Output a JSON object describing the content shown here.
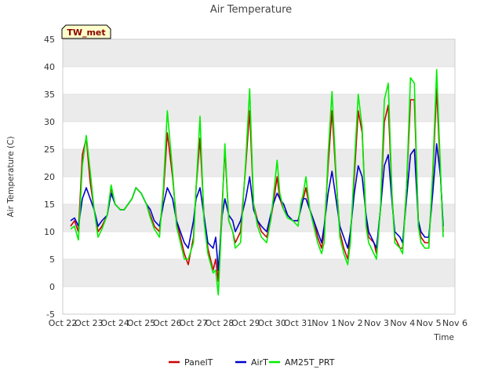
{
  "chart_data": {
    "type": "line",
    "title": "Air Temperature",
    "xlabel": "Time",
    "ylabel": "Air Temperature (C)",
    "station_label": "TW_met",
    "ylim": [
      -5,
      45
    ],
    "yticks": [
      -5,
      0,
      5,
      10,
      15,
      20,
      25,
      30,
      35,
      40,
      45
    ],
    "xlim": [
      0,
      15
    ],
    "xticks": [
      0,
      1,
      2,
      3,
      4,
      5,
      6,
      7,
      8,
      9,
      10,
      11,
      12,
      13,
      14,
      15
    ],
    "xtick_labels": [
      "Oct 22",
      "Oct 23",
      "Oct 24",
      "Oct 25",
      "Oct 26",
      "Oct 27",
      "Oct 28",
      "Oct 29",
      "Oct 30",
      "Oct 31",
      "Nov 1",
      "Nov 2",
      "Nov 3",
      "Nov 4",
      "Nov 5",
      "Nov 6"
    ],
    "grid": true,
    "legend_position": "bottom",
    "colors": {
      "background_band": "#ebebeb",
      "plot_bg": "#ffffff",
      "label_box_bg": "#ffffcc"
    },
    "series": [
      {
        "name": "PanelT",
        "color": "#cc0000",
        "x": [
          0.3,
          0.45,
          0.6,
          0.75,
          0.9,
          1.05,
          1.2,
          1.35,
          1.5,
          1.7,
          1.85,
          2.0,
          2.2,
          2.35,
          2.5,
          2.65,
          2.8,
          3.0,
          3.2,
          3.35,
          3.5,
          3.7,
          3.85,
          4.0,
          4.2,
          4.35,
          4.5,
          4.65,
          4.8,
          5.0,
          5.1,
          5.25,
          5.4,
          5.55,
          5.75,
          5.85,
          5.95,
          6.1,
          6.2,
          6.35,
          6.5,
          6.6,
          6.8,
          7.0,
          7.15,
          7.3,
          7.45,
          7.6,
          7.8,
          7.95,
          8.05,
          8.2,
          8.3,
          8.45,
          8.6,
          8.8,
          9.0,
          9.1,
          9.2,
          9.3,
          9.45,
          9.6,
          9.75,
          9.9,
          10.0,
          10.15,
          10.3,
          10.45,
          10.6,
          10.75,
          10.9,
          11.0,
          11.15,
          11.3,
          11.45,
          11.6,
          11.7,
          11.9,
          12.0,
          12.15,
          12.3,
          12.45,
          12.6,
          12.7,
          12.9,
          13.0,
          13.15,
          13.3,
          13.45,
          13.6,
          13.7,
          13.85,
          14.0,
          14.15,
          14.3,
          14.45,
          14.55
        ],
        "y": [
          11,
          12,
          10,
          24,
          27,
          19,
          14,
          10,
          11,
          13,
          18,
          15,
          14,
          14,
          15,
          16,
          18,
          17,
          15,
          13,
          11,
          10,
          17,
          28,
          20,
          12,
          9,
          6,
          4,
          9,
          18,
          27,
          13,
          7,
          3,
          5,
          1,
          15,
          25,
          12,
          10,
          8,
          10,
          22,
          32,
          15,
          12,
          10,
          9,
          12,
          15,
          20,
          16,
          14,
          13,
          12,
          12,
          14,
          16,
          18,
          14,
          12,
          9,
          7,
          10,
          22,
          32,
          20,
          10,
          7,
          5,
          9,
          20,
          32,
          28,
          12,
          9,
          8,
          6,
          14,
          30,
          33,
          16,
          9,
          7,
          7,
          18,
          34,
          34,
          12,
          9,
          8,
          8,
          20,
          36,
          20,
          10
        ],
        "values": [
          11,
          12,
          10,
          24,
          27,
          19,
          14,
          10,
          11,
          13,
          18,
          15,
          14,
          14,
          15,
          16,
          18,
          17,
          15,
          13,
          11,
          10,
          17,
          28,
          20,
          12,
          9,
          6,
          4,
          9,
          18,
          27,
          13,
          7,
          3,
          5,
          1,
          15,
          25,
          12,
          10,
          8,
          10,
          22,
          32,
          15,
          12,
          10,
          9,
          12,
          15,
          20,
          16,
          14,
          13,
          12,
          12,
          14,
          16,
          18,
          14,
          12,
          9,
          7,
          10,
          22,
          32,
          20,
          10,
          7,
          5,
          9,
          20,
          32,
          28,
          12,
          9,
          8,
          6,
          14,
          30,
          33,
          16,
          9,
          7,
          7,
          18,
          34,
          34,
          12,
          9,
          8,
          8,
          20,
          36,
          20,
          10
        ]
      },
      {
        "name": "AirT",
        "color": "#0000cc",
        "x": [
          0.3,
          0.45,
          0.6,
          0.75,
          0.9,
          1.05,
          1.2,
          1.35,
          1.5,
          1.7,
          1.85,
          2.0,
          2.2,
          2.35,
          2.5,
          2.65,
          2.8,
          3.0,
          3.2,
          3.35,
          3.5,
          3.7,
          3.85,
          4.0,
          4.2,
          4.35,
          4.5,
          4.65,
          4.8,
          5.0,
          5.1,
          5.25,
          5.4,
          5.55,
          5.75,
          5.85,
          5.95,
          6.1,
          6.2,
          6.35,
          6.5,
          6.6,
          6.8,
          7.0,
          7.15,
          7.3,
          7.45,
          7.6,
          7.8,
          7.95,
          8.05,
          8.2,
          8.3,
          8.45,
          8.6,
          8.8,
          9.0,
          9.1,
          9.2,
          9.3,
          9.45,
          9.6,
          9.75,
          9.9,
          10.0,
          10.15,
          10.3,
          10.45,
          10.6,
          10.75,
          10.9,
          11.0,
          11.15,
          11.3,
          11.45,
          11.6,
          11.7,
          11.9,
          12.0,
          12.15,
          12.3,
          12.45,
          12.6,
          12.7,
          12.9,
          13.0,
          13.15,
          13.3,
          13.45,
          13.6,
          13.7,
          13.85,
          14.0,
          14.15,
          14.3,
          14.45,
          14.55
        ],
        "y": [
          12,
          12.5,
          11,
          16,
          18,
          16,
          14,
          11,
          12,
          13,
          17,
          15,
          14,
          14,
          15,
          16,
          18,
          17,
          15,
          14,
          12,
          11,
          15,
          18,
          16,
          12,
          10,
          8,
          7,
          12,
          16,
          18,
          13,
          8,
          7,
          9,
          3,
          13,
          16,
          13,
          12,
          10,
          12,
          16,
          20,
          14,
          12,
          11,
          10,
          13,
          15,
          17,
          16,
          15,
          13,
          12,
          12,
          14,
          16,
          16,
          14,
          12,
          10,
          8,
          11,
          17,
          21,
          16,
          11,
          9,
          7,
          10,
          17,
          22,
          20,
          13,
          10,
          8,
          7,
          14,
          22,
          24,
          15,
          10,
          9,
          8,
          16,
          24,
          25,
          12,
          10,
          9,
          9,
          17,
          26,
          20,
          11
        ],
        "values": [
          12,
          12.5,
          11,
          16,
          18,
          16,
          14,
          11,
          12,
          13,
          17,
          15,
          14,
          14,
          15,
          16,
          18,
          17,
          15,
          14,
          12,
          11,
          15,
          18,
          16,
          12,
          10,
          8,
          7,
          12,
          16,
          18,
          13,
          8,
          7,
          9,
          3,
          13,
          16,
          13,
          12,
          10,
          12,
          16,
          20,
          14,
          12,
          11,
          10,
          13,
          15,
          17,
          16,
          15,
          13,
          12,
          12,
          14,
          16,
          16,
          14,
          12,
          10,
          8,
          11,
          17,
          21,
          16,
          11,
          9,
          7,
          10,
          17,
          22,
          20,
          13,
          10,
          8,
          7,
          14,
          22,
          24,
          15,
          10,
          9,
          8,
          16,
          24,
          25,
          12,
          10,
          9,
          9,
          17,
          26,
          20,
          11
        ]
      },
      {
        "name": "AM25T_PRT",
        "color": "#00ee00",
        "x": [
          0.3,
          0.45,
          0.6,
          0.75,
          0.9,
          1.05,
          1.2,
          1.35,
          1.5,
          1.7,
          1.85,
          2.0,
          2.2,
          2.35,
          2.5,
          2.65,
          2.8,
          3.0,
          3.2,
          3.35,
          3.5,
          3.7,
          3.85,
          4.0,
          4.2,
          4.35,
          4.5,
          4.65,
          4.8,
          5.0,
          5.1,
          5.25,
          5.4,
          5.55,
          5.75,
          5.85,
          5.95,
          6.1,
          6.2,
          6.35,
          6.5,
          6.6,
          6.8,
          7.0,
          7.15,
          7.3,
          7.45,
          7.6,
          7.8,
          7.95,
          8.05,
          8.2,
          8.3,
          8.45,
          8.6,
          8.8,
          9.0,
          9.1,
          9.2,
          9.3,
          9.45,
          9.6,
          9.75,
          9.9,
          10.0,
          10.15,
          10.3,
          10.45,
          10.6,
          10.75,
          10.9,
          11.0,
          11.15,
          11.3,
          11.45,
          11.6,
          11.7,
          11.9,
          12.0,
          12.15,
          12.3,
          12.45,
          12.6,
          12.7,
          12.9,
          13.0,
          13.15,
          13.3,
          13.45,
          13.6,
          13.7,
          13.85,
          14.0,
          14.15,
          14.3,
          14.45,
          14.55
        ],
        "y": [
          10.5,
          11,
          8.5,
          22,
          27.5,
          21,
          14,
          9,
          10.5,
          13,
          18.5,
          15,
          14,
          14,
          15,
          16,
          18,
          17,
          15,
          12.5,
          10.5,
          9,
          18,
          32,
          21,
          11,
          8,
          5,
          5,
          8,
          18,
          31,
          12,
          6,
          2.5,
          3,
          -1.5,
          14,
          26,
          12,
          10,
          7,
          8,
          23,
          36,
          15,
          11,
          9,
          8,
          12,
          16,
          23,
          17,
          14,
          12.5,
          12,
          11,
          15,
          17,
          20,
          14,
          11,
          8,
          6,
          8,
          24,
          35.5,
          21,
          9,
          6,
          4,
          8,
          22,
          35,
          29,
          11,
          8,
          6,
          5,
          14,
          34,
          37,
          16,
          8,
          7,
          6,
          18,
          38,
          37,
          11,
          8,
          7,
          7,
          21,
          39.5,
          21,
          9
        ]
      }
    ]
  }
}
